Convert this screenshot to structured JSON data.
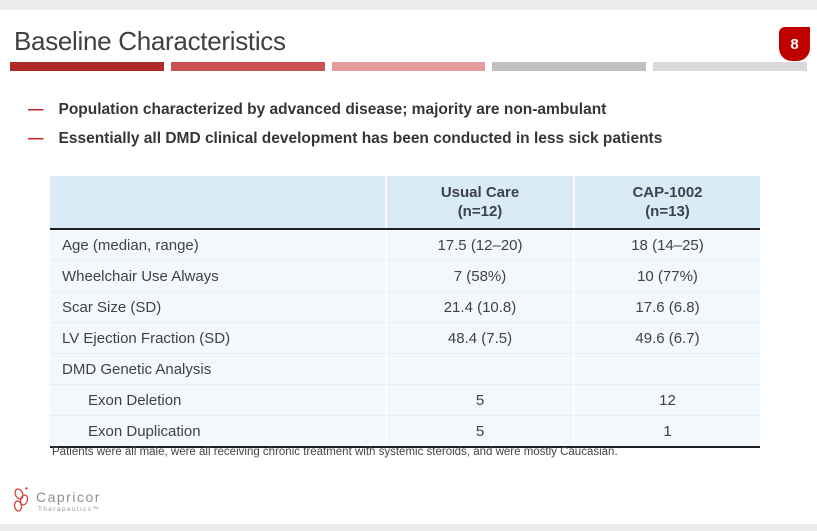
{
  "slide": {
    "title": "Baseline Characteristics",
    "page_badge": "8",
    "accent_bar_colors": [
      "#b02a28",
      "#c9514f",
      "#e49c9c",
      "#c0c0c0",
      "#d9d9d9"
    ],
    "bullet_marker": "—",
    "bullets": [
      {
        "text": "Population characterized by advanced disease; majority are non-ambulant"
      },
      {
        "text": "Essentially all DMD clinical development has been conducted in less sick patients"
      }
    ]
  },
  "table": {
    "columns": [
      {
        "line1": "Usual Care",
        "line2": "(n=12)"
      },
      {
        "line1": "CAP-1002",
        "line2": "(n=13)"
      }
    ],
    "rows": [
      {
        "label": "Age (median, range)",
        "usual_care": "17.5 (12–20)",
        "cap_1002": "18 (14–25)",
        "indent": false
      },
      {
        "label": "Wheelchair Use Always",
        "usual_care": "7 (58%)",
        "cap_1002": "10 (77%)",
        "indent": false
      },
      {
        "label": "Scar Size (SD)",
        "usual_care": "21.4 (10.8)",
        "cap_1002": "17.6 (6.8)",
        "indent": false
      },
      {
        "label": "LV Ejection Fraction (SD)",
        "usual_care": "48.4 (7.5)",
        "cap_1002": "49.6 (6.7)",
        "indent": false
      },
      {
        "label": "DMD Genetic Analysis",
        "usual_care": "",
        "cap_1002": "",
        "indent": false
      },
      {
        "label": "Exon Deletion",
        "usual_care": "5",
        "cap_1002": "12",
        "indent": true
      },
      {
        "label": "Exon Duplication",
        "usual_care": "5",
        "cap_1002": "1",
        "indent": true
      }
    ],
    "footnote": "Patients were all male, were all receiving chronic treatment with systemic steroids, and were mostly Caucasian."
  },
  "logo": {
    "name": "Capricor",
    "subtitle": "Therapeutics™"
  },
  "colors": {
    "badge_red": "#c00000",
    "bullet_dash_red": "#bf2b28",
    "bar_dark_red": "#b02a28",
    "bar_mid_red": "#c9514f",
    "bar_pink": "#e49c9c",
    "bar_gray": "#c0c0c0",
    "bar_light_gray": "#d9d9d9",
    "table_header_bg": "#d9ebf6",
    "table_body_bg": "#f2f8fc",
    "table_border_dark": "#1f1f1f",
    "title_text": "#3f4142",
    "table_text": "#3d4349",
    "logo_red": "#d4453f"
  }
}
